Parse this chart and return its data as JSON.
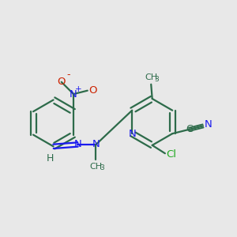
{
  "bg_color": "#e8e8e8",
  "bond_color": "#2d6b4a",
  "N_color": "#1a1aee",
  "O_color": "#cc2200",
  "Cl_color": "#22aa22",
  "line_width": 1.6,
  "fig_w": 3.0,
  "fig_h": 3.0,
  "dpi": 100,
  "xlim": [
    0,
    10
  ],
  "ylim": [
    0,
    8
  ]
}
